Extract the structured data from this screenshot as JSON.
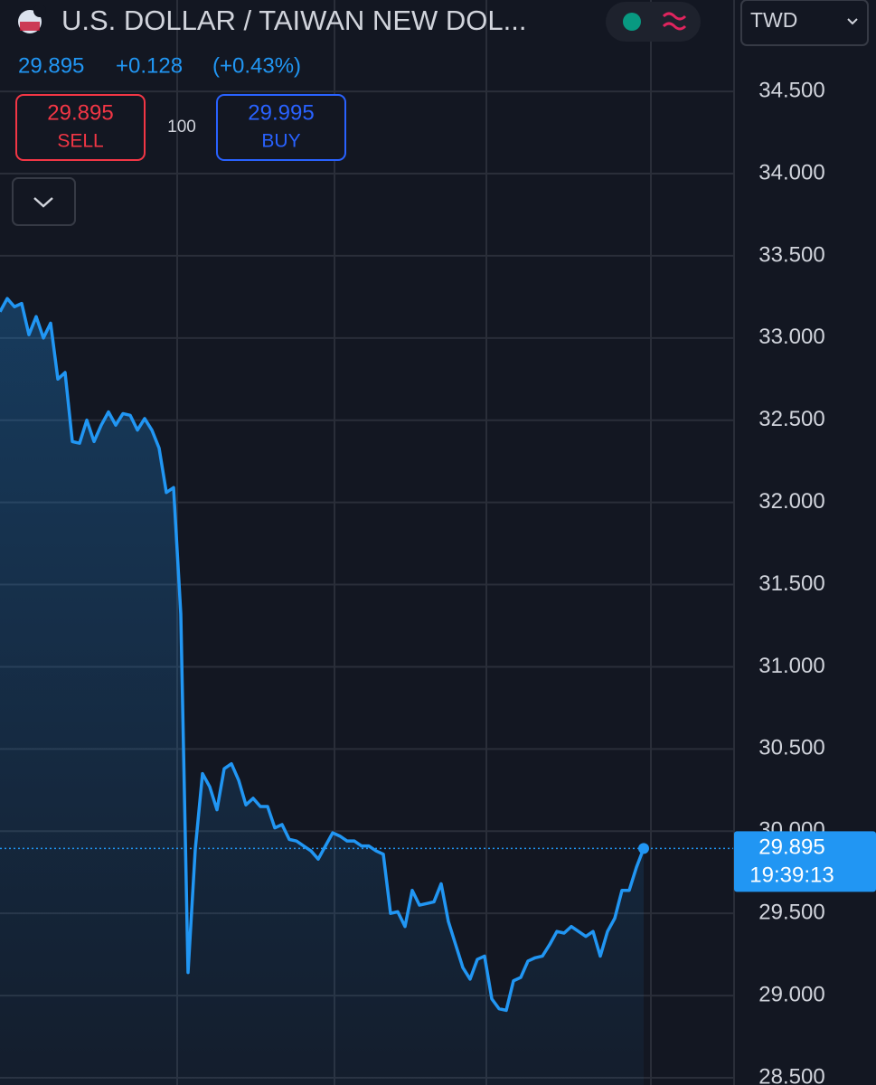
{
  "header": {
    "title": "U.S. DOLLAR / TAIWAN NEW DOL...",
    "price": "29.895",
    "change": "+0.128",
    "change_percent": "(+0.43%)",
    "sell_price": "29.895",
    "sell_label": "SELL",
    "quantity": "100",
    "buy_price": "29.995",
    "buy_label": "BUY",
    "currency": "TWD",
    "time": "19:39:13"
  },
  "chart_data": {
    "type": "area",
    "color": "#2196f3",
    "grid": true,
    "values": [
      33.16,
      33.24,
      33.19,
      33.21,
      33.02,
      33.13,
      33.0,
      33.09,
      32.75,
      32.79,
      32.37,
      32.36,
      32.5,
      32.37,
      32.47,
      32.55,
      32.47,
      32.54,
      32.53,
      32.44,
      32.51,
      32.44,
      32.33,
      32.06,
      32.09,
      31.32,
      29.14,
      29.89,
      30.35,
      30.27,
      30.13,
      30.38,
      30.41,
      30.31,
      30.16,
      30.2,
      30.15,
      30.15,
      30.02,
      30.04,
      29.95,
      29.94,
      29.91,
      29.88,
      29.83,
      29.91,
      29.99,
      29.97,
      29.94,
      29.94,
      29.91,
      29.91,
      29.88,
      29.86,
      29.5,
      29.51,
      29.42,
      29.64,
      29.55,
      29.56,
      29.57,
      29.68,
      29.45,
      29.31,
      29.17,
      29.1,
      29.22,
      29.24,
      28.98,
      28.92,
      28.91,
      29.09,
      29.11,
      29.21,
      29.23,
      29.24,
      29.31,
      29.39,
      29.38,
      29.42,
      29.39,
      29.36,
      29.39,
      29.24,
      29.39,
      29.47,
      29.64,
      29.64,
      29.78,
      29.895
    ],
    "ylim": [
      28.456,
      35.056
    ],
    "yticks": [
      {
        "value": 28.5,
        "label": "28.500"
      },
      {
        "value": 29,
        "label": "29.000"
      },
      {
        "value": 29.5,
        "label": "29.500"
      },
      {
        "value": 30,
        "label": "30.000"
      },
      {
        "value": 30.5,
        "label": "30.500"
      },
      {
        "value": 31,
        "label": "31.000"
      },
      {
        "value": 31.5,
        "label": "31.500"
      },
      {
        "value": 32,
        "label": "32.000"
      },
      {
        "value": 32.5,
        "label": "32.500"
      },
      {
        "value": 33,
        "label": "33.000"
      },
      {
        "value": 33.5,
        "label": "33.500"
      },
      {
        "value": 34,
        "label": "34.000"
      },
      {
        "value": 34.5,
        "label": "34.500"
      }
    ]
  }
}
